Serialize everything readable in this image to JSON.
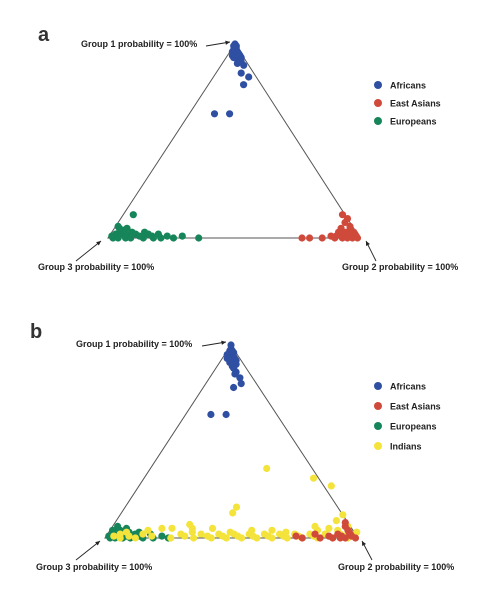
{
  "colors": {
    "Africans": "#2f4fa2",
    "East Asians": "#d04a3c",
    "Europeans": "#16855a",
    "Indians": "#f4e33a",
    "axis": "#555555",
    "text": "#222222"
  },
  "chart_data": [
    {
      "panel": "a",
      "type": "scatter",
      "subtype": "ternary",
      "vertex_labels": {
        "top": "Group 1 probability = 100%",
        "right": "Group 2 probability = 100%",
        "left": "Group 3 probability = 100%"
      },
      "legend": {
        "placement": "right",
        "entries": [
          "Africans",
          "East Asians",
          "Europeans"
        ]
      },
      "series": [
        {
          "name": "Africans",
          "points": [
            [
              1.0,
              0,
              0
            ],
            [
              0.99,
              0.01,
              0
            ],
            [
              0.98,
              0.015,
              0.005
            ],
            [
              0.97,
              0.02,
              0.01
            ],
            [
              0.96,
              0.03,
              0.01
            ],
            [
              0.95,
              0.03,
              0.02
            ],
            [
              0.94,
              0.05,
              0.01
            ],
            [
              0.93,
              0.06,
              0.01
            ],
            [
              0.92,
              0.05,
              0.03
            ],
            [
              0.91,
              0.07,
              0.02
            ],
            [
              0.9,
              0.06,
              0.04
            ],
            [
              0.89,
              0.09,
              0.02
            ],
            [
              0.85,
              0.1,
              0.05
            ],
            [
              0.83,
              0.14,
              0.03
            ],
            [
              0.79,
              0.14,
              0.07
            ],
            [
              0.64,
              0.16,
              0.2
            ],
            [
              0.64,
              0.1,
              0.26
            ],
            [
              0.97,
              0.01,
              0.02
            ],
            [
              0.95,
              0.04,
              0.01
            ],
            [
              0.96,
              0.01,
              0.03
            ],
            [
              0.93,
              0.03,
              0.04
            ],
            [
              0.98,
              0.01,
              0.01
            ],
            [
              0.99,
              0,
              0.01
            ],
            [
              0.94,
              0.02,
              0.04
            ]
          ]
        },
        {
          "name": "East Asians",
          "points": [
            [
              0.02,
              0.94,
              0.04
            ],
            [
              0.01,
              0.97,
              0.02
            ],
            [
              0.03,
              0.93,
              0.04
            ],
            [
              0,
              0.99,
              0.01
            ],
            [
              0.01,
              0.98,
              0.01
            ],
            [
              0,
              0.95,
              0.05
            ],
            [
              0.02,
              0.92,
              0.06
            ],
            [
              0,
              0.9,
              0.1
            ],
            [
              0.01,
              0.88,
              0.11
            ],
            [
              0,
              0.85,
              0.15
            ],
            [
              0,
              0.8,
              0.2
            ],
            [
              0,
              0.77,
              0.23
            ],
            [
              0.05,
              0.9,
              0.05
            ],
            [
              0.06,
              0.93,
              0.01
            ],
            [
              0.08,
              0.9,
              0.02
            ],
            [
              0.1,
              0.9,
              0
            ],
            [
              0.12,
              0.87,
              0.01
            ],
            [
              0.03,
              0.96,
              0.01
            ],
            [
              0.02,
              0.91,
              0.07
            ],
            [
              0.04,
              0.94,
              0.02
            ],
            [
              0.01,
              0.96,
              0.03
            ],
            [
              0,
              0.93,
              0.07
            ],
            [
              0.01,
              0.9,
              0.09
            ],
            [
              0.02,
              0.97,
              0.01
            ],
            [
              0,
              0.97,
              0.03
            ],
            [
              0.03,
              0.9,
              0.07
            ]
          ]
        },
        {
          "name": "Europeans",
          "points": [
            [
              0.01,
              0.01,
              0.98
            ],
            [
              0,
              0.02,
              0.98
            ],
            [
              0.02,
              0.02,
              0.96
            ],
            [
              0.03,
              0.03,
              0.94
            ],
            [
              0.01,
              0.03,
              0.96
            ],
            [
              0,
              0.04,
              0.96
            ],
            [
              0.02,
              0.05,
              0.93
            ],
            [
              0.04,
              0.04,
              0.92
            ],
            [
              0.02,
              0.06,
              0.92
            ],
            [
              0,
              0.07,
              0.93
            ],
            [
              0.01,
              0.08,
              0.91
            ],
            [
              0.03,
              0.08,
              0.89
            ],
            [
              0,
              0.09,
              0.91
            ],
            [
              0.02,
              0.1,
              0.88
            ],
            [
              0.01,
              0.12,
              0.87
            ],
            [
              0.03,
              0.13,
              0.84
            ],
            [
              0,
              0.14,
              0.86
            ],
            [
              0.02,
              0.15,
              0.83
            ],
            [
              0.01,
              0.17,
              0.82
            ],
            [
              0,
              0.18,
              0.82
            ],
            [
              0.02,
              0.19,
              0.79
            ],
            [
              0,
              0.21,
              0.79
            ],
            [
              0.01,
              0.23,
              0.76
            ],
            [
              0,
              0.26,
              0.74
            ],
            [
              0.01,
              0.29,
              0.7
            ],
            [
              0,
              0.36,
              0.64
            ],
            [
              0.12,
              0.04,
              0.84
            ],
            [
              0.06,
              0.01,
              0.93
            ],
            [
              0.05,
              0.05,
              0.9
            ],
            [
              0.05,
              0.02,
              0.93
            ]
          ]
        }
      ]
    },
    {
      "panel": "b",
      "type": "scatter",
      "subtype": "ternary",
      "vertex_labels": {
        "top": "Group 1 probability = 100%",
        "right": "Group 2 probability = 100%",
        "left": "Group 3 probability = 100%"
      },
      "legend": {
        "placement": "right",
        "entries": [
          "Africans",
          "East Asians",
          "Europeans",
          "Indians"
        ]
      },
      "series": [
        {
          "name": "Africans",
          "points": [
            [
              1.0,
              0,
              0
            ],
            [
              0.98,
              0.01,
              0.01
            ],
            [
              0.97,
              0.02,
              0.01
            ],
            [
              0.96,
              0.03,
              0.01
            ],
            [
              0.95,
              0.02,
              0.03
            ],
            [
              0.94,
              0.04,
              0.02
            ],
            [
              0.93,
              0.05,
              0.02
            ],
            [
              0.92,
              0.06,
              0.02
            ],
            [
              0.91,
              0.04,
              0.05
            ],
            [
              0.9,
              0.07,
              0.03
            ],
            [
              0.89,
              0.06,
              0.05
            ],
            [
              0.88,
              0.07,
              0.05
            ],
            [
              0.86,
              0.09,
              0.05
            ],
            [
              0.85,
              0.09,
              0.06
            ],
            [
              0.83,
              0.12,
              0.05
            ],
            [
              0.8,
              0.14,
              0.06
            ],
            [
              0.78,
              0.12,
              0.1
            ],
            [
              0.64,
              0.16,
              0.2
            ],
            [
              0.64,
              0.1,
              0.26
            ],
            [
              0.95,
              0.01,
              0.04
            ],
            [
              0.97,
              0.01,
              0.02
            ],
            [
              0.93,
              0.02,
              0.05
            ]
          ]
        },
        {
          "name": "East Asians",
          "points": [
            [
              0,
              0.99,
              0.01
            ],
            [
              0.01,
              0.97,
              0.02
            ],
            [
              0,
              0.95,
              0.05
            ],
            [
              0.02,
              0.96,
              0.02
            ],
            [
              0.04,
              0.94,
              0.02
            ],
            [
              0.01,
              0.93,
              0.06
            ],
            [
              0.02,
              0.91,
              0.07
            ],
            [
              0,
              0.9,
              0.1
            ],
            [
              0.01,
              0.88,
              0.11
            ],
            [
              0,
              0.85,
              0.15
            ],
            [
              0.02,
              0.82,
              0.16
            ],
            [
              0,
              0.78,
              0.22
            ],
            [
              0.01,
              0.75,
              0.24
            ],
            [
              0.06,
              0.92,
              0.02
            ],
            [
              0.08,
              0.91,
              0.01
            ],
            [
              0.03,
              0.95,
              0.02
            ],
            [
              0,
              0.93,
              0.07
            ]
          ]
        },
        {
          "name": "Europeans",
          "points": [
            [
              0.01,
              0.01,
              0.98
            ],
            [
              0,
              0.02,
              0.98
            ],
            [
              0.02,
              0.02,
              0.96
            ],
            [
              0.01,
              0.03,
              0.96
            ],
            [
              0.03,
              0.03,
              0.94
            ],
            [
              0,
              0.04,
              0.96
            ],
            [
              0.02,
              0.04,
              0.94
            ],
            [
              0.04,
              0.04,
              0.92
            ],
            [
              0.02,
              0.06,
              0.92
            ],
            [
              0,
              0.07,
              0.93
            ],
            [
              0.01,
              0.08,
              0.91
            ],
            [
              0.03,
              0.08,
              0.89
            ],
            [
              0,
              0.1,
              0.9
            ],
            [
              0.02,
              0.11,
              0.87
            ],
            [
              0.01,
              0.13,
              0.86
            ],
            [
              0,
              0.15,
              0.85
            ],
            [
              0.02,
              0.17,
              0.81
            ],
            [
              0,
              0.19,
              0.81
            ],
            [
              0.01,
              0.22,
              0.77
            ],
            [
              0,
              0.25,
              0.75
            ],
            [
              0.05,
              0.06,
              0.89
            ],
            [
              0.06,
              0.02,
              0.92
            ],
            [
              0.04,
              0.01,
              0.95
            ],
            [
              0.03,
              0.12,
              0.85
            ]
          ]
        },
        {
          "name": "Indians",
          "points": [
            [
              0.01,
              0.03,
              0.96
            ],
            [
              0.02,
              0.05,
              0.93
            ],
            [
              0,
              0.06,
              0.94
            ],
            [
              0.03,
              0.07,
              0.9
            ],
            [
              0.01,
              0.09,
              0.9
            ],
            [
              0,
              0.12,
              0.88
            ],
            [
              0.02,
              0.14,
              0.84
            ],
            [
              0.01,
              0.18,
              0.81
            ],
            [
              0.05,
              0.24,
              0.71
            ],
            [
              0,
              0.26,
              0.74
            ],
            [
              0.02,
              0.29,
              0.69
            ],
            [
              0.01,
              0.31,
              0.68
            ],
            [
              0.03,
              0.33,
              0.64
            ],
            [
              0,
              0.35,
              0.65
            ],
            [
              0.02,
              0.37,
              0.61
            ],
            [
              0.01,
              0.4,
              0.59
            ],
            [
              0,
              0.42,
              0.58
            ],
            [
              0.02,
              0.44,
              0.54
            ],
            [
              0.01,
              0.46,
              0.53
            ],
            [
              0,
              0.48,
              0.52
            ],
            [
              0.02,
              0.5,
              0.48
            ],
            [
              0.01,
              0.52,
              0.47
            ],
            [
              0,
              0.54,
              0.46
            ],
            [
              0.02,
              0.56,
              0.42
            ],
            [
              0.01,
              0.58,
              0.41
            ],
            [
              0,
              0.6,
              0.4
            ],
            [
              0.02,
              0.62,
              0.36
            ],
            [
              0.01,
              0.64,
              0.35
            ],
            [
              0,
              0.66,
              0.34
            ],
            [
              0.02,
              0.68,
              0.3
            ],
            [
              0.01,
              0.7,
              0.29
            ],
            [
              0,
              0.72,
              0.28
            ],
            [
              0.02,
              0.74,
              0.24
            ],
            [
              0.01,
              0.76,
              0.23
            ],
            [
              0,
              0.78,
              0.22
            ],
            [
              0.02,
              0.8,
              0.18
            ],
            [
              0.01,
              0.82,
              0.17
            ],
            [
              0,
              0.84,
              0.16
            ],
            [
              0.02,
              0.86,
              0.12
            ],
            [
              0.01,
              0.88,
              0.11
            ],
            [
              0,
              0.9,
              0.1
            ],
            [
              0.02,
              0.92,
              0.06
            ],
            [
              0.01,
              0.94,
              0.05
            ],
            [
              0,
              0.96,
              0.04
            ],
            [
              0.04,
              0.82,
              0.14
            ],
            [
              0.05,
              0.86,
              0.09
            ],
            [
              0.06,
              0.8,
              0.14
            ],
            [
              0.04,
              0.9,
              0.06
            ],
            [
              0.06,
              0.93,
              0.01
            ],
            [
              0.03,
              0.98,
              -0.01
            ],
            [
              0.36,
              0.46,
              0.18
            ],
            [
              0.31,
              0.67,
              0.02
            ],
            [
              0.27,
              0.76,
              -0.03
            ],
            [
              0.16,
              0.44,
              0.4
            ],
            [
              0.13,
              0.44,
              0.43
            ],
            [
              0.05,
              0.32,
              0.63
            ],
            [
              0.05,
              0.4,
              0.55
            ],
            [
              0.04,
              0.56,
              0.4
            ],
            [
              0.07,
              0.3,
              0.63
            ],
            [
              0.03,
              0.7,
              0.27
            ],
            [
              0.04,
              0.64,
              0.32
            ],
            [
              0.03,
              0.48,
              0.49
            ],
            [
              0.04,
              0.15,
              0.81
            ],
            [
              0.05,
              0.2,
              0.75
            ],
            [
              0.12,
              0.88,
              0
            ],
            [
              0.09,
              0.87,
              0.04
            ]
          ]
        }
      ]
    }
  ]
}
